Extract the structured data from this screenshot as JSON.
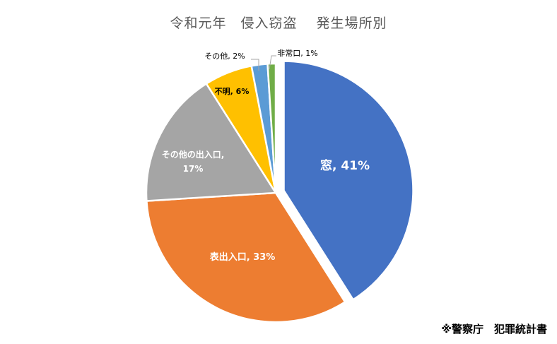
{
  "chart_data": {
    "type": "pie",
    "title": "令和元年　侵入窃盗　 発生場所別",
    "slices": [
      {
        "label": "窓",
        "value": 41,
        "data_label": "窓, 41%",
        "color": "#4472C4"
      },
      {
        "label": "表出入口",
        "value": 33,
        "data_label": "表出入口, 33%",
        "color": "#ED7D31"
      },
      {
        "label": "その他の出入口",
        "value": 17,
        "data_label_lines": [
          "その他の出入口,",
          "17%"
        ],
        "color": "#A5A5A5"
      },
      {
        "label": "不明",
        "value": 6,
        "data_label": "不明, 6%",
        "color": "#FFC000"
      },
      {
        "label": "その他",
        "value": 2,
        "data_label": "その他, 2%",
        "color": "#5B9BD5"
      },
      {
        "label": "非常口",
        "value": 1,
        "data_label": "非常口, 1%",
        "color": "#70AD47"
      }
    ],
    "legend": "none"
  },
  "source_note": "※警察庁　犯罪統計書"
}
